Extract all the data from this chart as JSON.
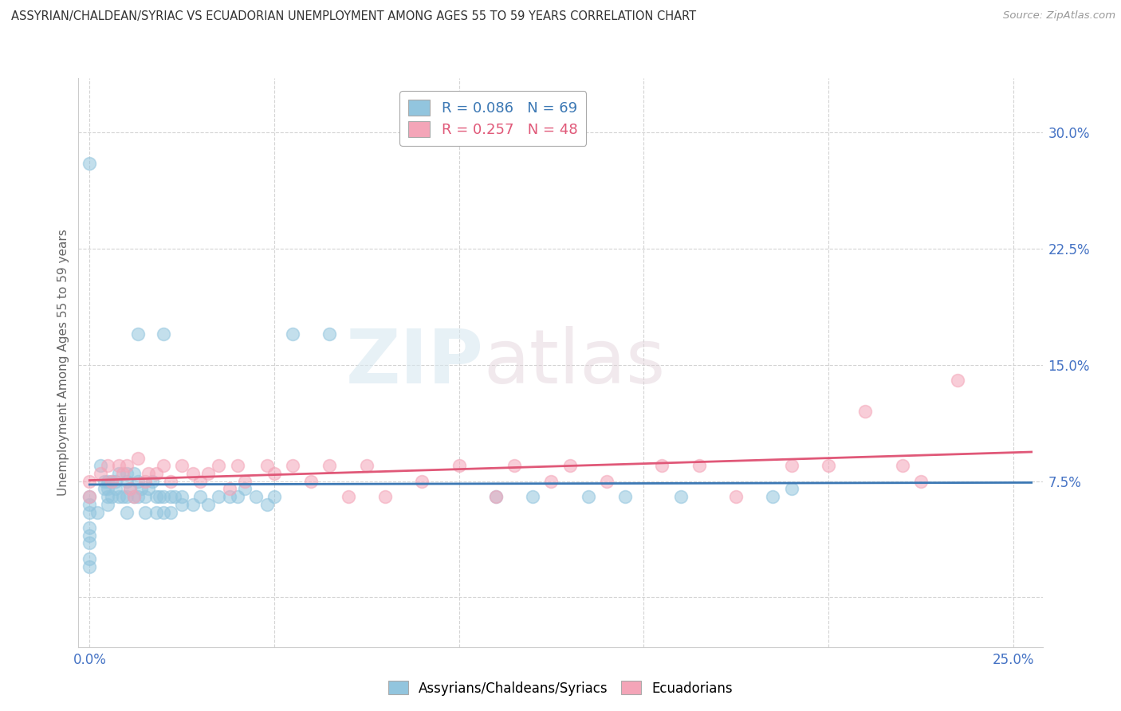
{
  "title": "ASSYRIAN/CHALDEAN/SYRIAC VS ECUADORIAN UNEMPLOYMENT AMONG AGES 55 TO 59 YEARS CORRELATION CHART",
  "source": "Source: ZipAtlas.com",
  "ylabel": "Unemployment Among Ages 55 to 59 years",
  "xlim": [
    -0.003,
    0.258
  ],
  "ylim": [
    -0.032,
    0.335
  ],
  "xticks": [
    0.0,
    0.05,
    0.1,
    0.15,
    0.2,
    0.25
  ],
  "xticklabels": [
    "0.0%",
    "",
    "",
    "",
    "",
    "25.0%"
  ],
  "yticks": [
    0.0,
    0.075,
    0.15,
    0.225,
    0.3
  ],
  "yticklabels": [
    "",
    "7.5%",
    "15.0%",
    "22.5%",
    "30.0%"
  ],
  "legend1_r": "0.086",
  "legend1_n": "69",
  "legend2_r": "0.257",
  "legend2_n": "48",
  "color_blue": "#92c5de",
  "color_pink": "#f4a5b8",
  "color_line_blue": "#3c78b4",
  "color_line_pink": "#e05878",
  "background": "#ffffff",
  "watermark_zip": "ZIP",
  "watermark_atlas": "atlas",
  "assyrian_x": [
    0.0,
    0.0,
    0.0,
    0.0,
    0.0,
    0.0,
    0.0,
    0.0,
    0.0,
    0.002,
    0.003,
    0.004,
    0.004,
    0.005,
    0.005,
    0.005,
    0.005,
    0.006,
    0.006,
    0.007,
    0.007,
    0.008,
    0.008,
    0.009,
    0.01,
    0.01,
    0.01,
    0.01,
    0.011,
    0.012,
    0.012,
    0.013,
    0.013,
    0.014,
    0.015,
    0.015,
    0.016,
    0.017,
    0.018,
    0.018,
    0.019,
    0.02,
    0.02,
    0.022,
    0.022,
    0.023,
    0.025,
    0.025,
    0.028,
    0.03,
    0.032,
    0.035,
    0.038,
    0.04,
    0.042,
    0.045,
    0.048,
    0.05,
    0.055,
    0.065,
    0.11,
    0.12,
    0.135,
    0.145,
    0.16,
    0.185,
    0.19,
    0.02,
    0.013
  ],
  "assyrian_y": [
    0.28,
    0.065,
    0.06,
    0.055,
    0.045,
    0.04,
    0.035,
    0.025,
    0.02,
    0.055,
    0.085,
    0.075,
    0.07,
    0.075,
    0.07,
    0.065,
    0.06,
    0.075,
    0.065,
    0.075,
    0.07,
    0.08,
    0.065,
    0.065,
    0.08,
    0.075,
    0.065,
    0.055,
    0.07,
    0.08,
    0.065,
    0.075,
    0.065,
    0.07,
    0.065,
    0.055,
    0.07,
    0.075,
    0.065,
    0.055,
    0.065,
    0.065,
    0.055,
    0.065,
    0.055,
    0.065,
    0.065,
    0.06,
    0.06,
    0.065,
    0.06,
    0.065,
    0.065,
    0.065,
    0.07,
    0.065,
    0.06,
    0.065,
    0.17,
    0.17,
    0.065,
    0.065,
    0.065,
    0.065,
    0.065,
    0.065,
    0.07,
    0.17,
    0.17
  ],
  "ecuadorian_x": [
    0.0,
    0.0,
    0.003,
    0.005,
    0.006,
    0.008,
    0.009,
    0.01,
    0.011,
    0.012,
    0.013,
    0.015,
    0.016,
    0.018,
    0.02,
    0.022,
    0.025,
    0.028,
    0.03,
    0.032,
    0.035,
    0.038,
    0.04,
    0.042,
    0.048,
    0.05,
    0.055,
    0.06,
    0.065,
    0.07,
    0.075,
    0.08,
    0.09,
    0.1,
    0.11,
    0.115,
    0.125,
    0.13,
    0.14,
    0.155,
    0.165,
    0.175,
    0.19,
    0.2,
    0.21,
    0.22,
    0.225,
    0.235
  ],
  "ecuadorian_y": [
    0.075,
    0.065,
    0.08,
    0.085,
    0.075,
    0.085,
    0.08,
    0.085,
    0.07,
    0.065,
    0.09,
    0.075,
    0.08,
    0.08,
    0.085,
    0.075,
    0.085,
    0.08,
    0.075,
    0.08,
    0.085,
    0.07,
    0.085,
    0.075,
    0.085,
    0.08,
    0.085,
    0.075,
    0.085,
    0.065,
    0.085,
    0.065,
    0.075,
    0.085,
    0.065,
    0.085,
    0.075,
    0.085,
    0.075,
    0.085,
    0.085,
    0.065,
    0.085,
    0.085,
    0.12,
    0.085,
    0.075,
    0.14
  ]
}
